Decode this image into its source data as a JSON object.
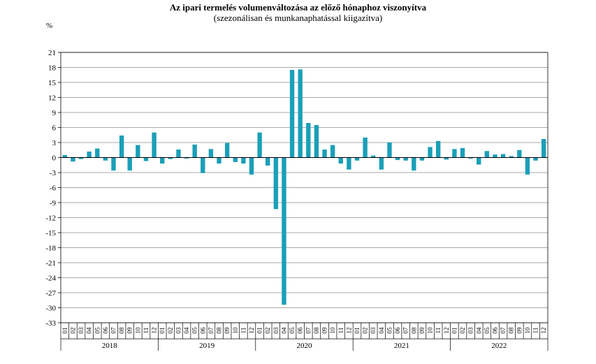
{
  "chart_data": {
    "type": "bar",
    "title": "Az ipari  termelés volumenváltozása az előző hónaphoz viszonyítva",
    "subtitle": "(szezonálisan és munkanaphatással kiigazítva)",
    "ylabel": "%",
    "ylim": [
      -33,
      21
    ],
    "yticks": [
      21,
      18,
      15,
      12,
      9,
      6,
      3,
      0,
      -3,
      -6,
      -9,
      -12,
      -15,
      -18,
      -21,
      -24,
      -27,
      -30,
      -33
    ],
    "grid": true,
    "bar_color": "#1b9fb8",
    "month_labels": [
      "01",
      "02",
      "03",
      "04",
      "05",
      "06",
      "07",
      "08",
      "09",
      "10",
      "11",
      "12"
    ],
    "years": [
      "2018",
      "2019",
      "2020",
      "2021",
      "2022"
    ],
    "values": [
      0.5,
      -0.8,
      -0.3,
      1.2,
      1.8,
      -0.6,
      -2.6,
      4.4,
      -2.6,
      2.5,
      -0.7,
      5.0,
      -1.2,
      -0.3,
      1.6,
      -0.2,
      2.6,
      -3.1,
      1.7,
      -1.2,
      2.9,
      -0.9,
      -1.2,
      -3.4,
      5.0,
      -1.6,
      -10.3,
      -29.4,
      17.5,
      17.6,
      6.9,
      6.5,
      1.6,
      2.5,
      -1.2,
      -2.4,
      -0.6,
      4.0,
      0.4,
      -2.4,
      3.0,
      -0.5,
      -0.6,
      -2.6,
      -0.6,
      2.1,
      3.3,
      -0.4,
      1.7,
      1.9,
      -0.2,
      -1.4,
      1.3,
      0.6,
      0.7,
      0.3,
      1.5,
      -3.4,
      -0.6,
      3.7
    ]
  }
}
